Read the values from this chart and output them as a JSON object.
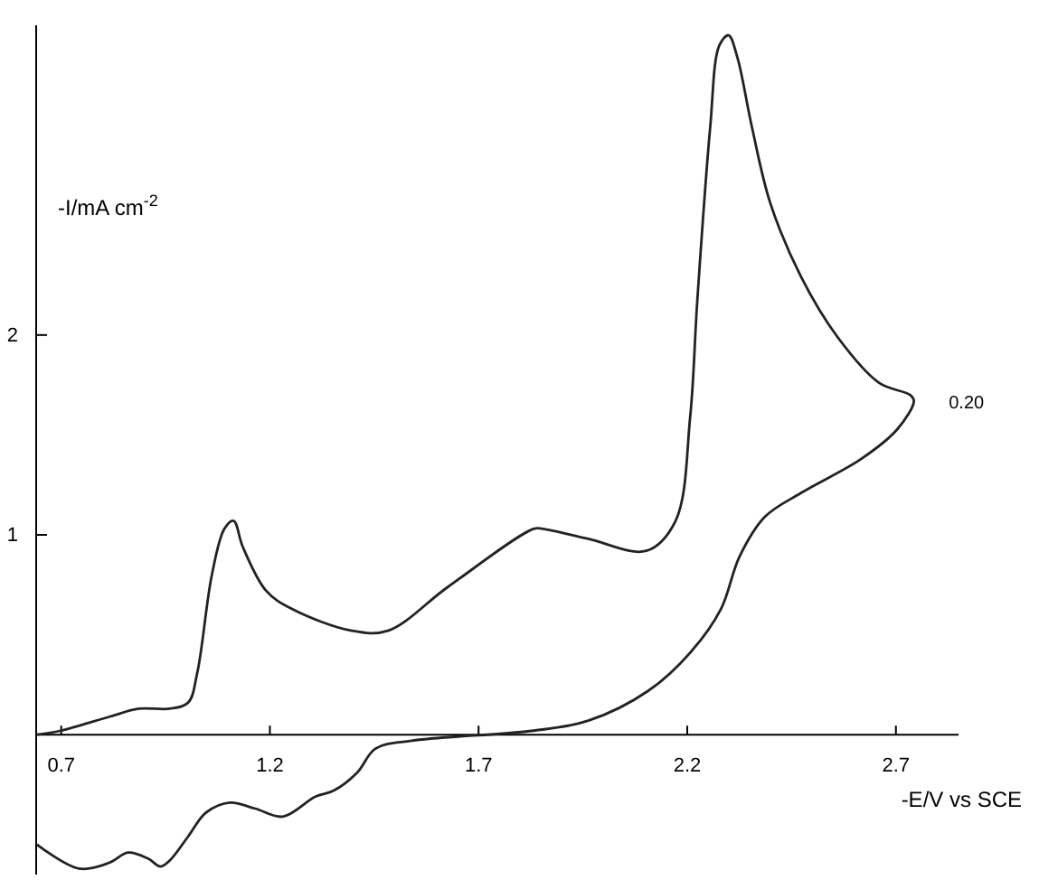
{
  "chart_data": {
    "type": "line",
    "xlabel": "-E/V vs SCE",
    "ylabel": "-I/mA cm$^{-2}$",
    "xlim": [
      0.64,
      2.85
    ],
    "ylim": [
      -0.7,
      3.55
    ],
    "xticks": [
      0.7,
      1.2,
      1.7,
      2.2,
      2.7
    ],
    "yticks": [
      1,
      2
    ],
    "marker": "none",
    "line_style": "solid",
    "annotations": [
      {
        "text": "0.20",
        "x": 2.74,
        "y": 1.67
      }
    ],
    "series": [
      {
        "color": "#222222",
        "x": [
          0.642,
          0.699,
          0.816,
          0.886,
          0.96,
          1.004,
          1.026,
          1.061,
          1.091,
          1.113,
          1.135,
          1.191,
          1.252,
          1.396,
          1.483,
          1.627,
          1.832,
          1.854,
          1.963,
          2.102,
          2.172,
          2.207,
          2.224,
          2.255,
          2.277,
          2.299,
          2.32,
          2.355,
          2.399,
          2.473,
          2.56,
          2.66,
          2.734,
          2.743,
          2.704,
          2.617,
          2.473,
          2.386,
          2.325,
          2.281,
          2.211,
          2.107,
          1.963,
          1.832,
          1.54,
          1.453,
          1.409,
          1.353,
          1.309,
          1.231,
          1.165,
          1.104,
          1.047,
          1.004,
          0.96,
          0.938,
          0.908,
          0.86,
          0.816,
          0.742,
          0.642
        ],
        "values": [
          0,
          0.02,
          0.09,
          0.13,
          0.13,
          0.16,
          0.31,
          0.8,
          1.03,
          1.07,
          0.94,
          0.72,
          0.63,
          0.52,
          0.52,
          0.74,
          1.03,
          1.03,
          0.98,
          0.92,
          1.07,
          1.59,
          2.17,
          3.04,
          3.45,
          3.5,
          3.39,
          3.04,
          2.66,
          2.29,
          1.99,
          1.76,
          1.7,
          1.67,
          1.53,
          1.38,
          1.21,
          1.09,
          0.89,
          0.63,
          0.42,
          0.22,
          0.07,
          0.02,
          -0.03,
          -0.07,
          -0.19,
          -0.28,
          -0.31,
          -0.41,
          -0.37,
          -0.34,
          -0.39,
          -0.51,
          -0.63,
          -0.66,
          -0.62,
          -0.59,
          -0.64,
          -0.67,
          -0.55
        ]
      }
    ]
  }
}
